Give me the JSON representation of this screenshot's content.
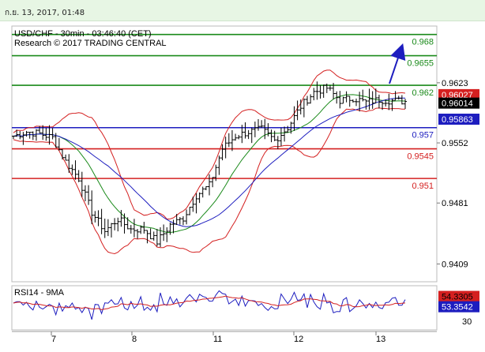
{
  "header": {
    "timestamp": "ก.ย. 13, 2017, 01:48"
  },
  "chart_data": [
    {
      "type": "candlestick",
      "title": "USD/CHF - 30min - 03:46:40 (CET)",
      "subtitle": "Research © 2017 TRADING CENTRAL",
      "ylim": [
        0.9388,
        0.969
      ],
      "y_ticks": [
        "0.9623",
        "0.9552",
        "0.9481",
        "0.9409"
      ],
      "x_ticks": [
        "7",
        "8",
        "11",
        "12",
        "13"
      ],
      "resistance_levels": [
        {
          "label": "0.968",
          "value": 0.968,
          "color": "#1a8a1a"
        },
        {
          "label": "0.9655",
          "value": 0.9655,
          "color": "#1a8a1a"
        },
        {
          "label": "0.962",
          "value": 0.962,
          "color": "#1a8a1a"
        }
      ],
      "pivot": {
        "label": "0.957",
        "value": 0.957,
        "color": "#1d1dbf"
      },
      "support_levels": [
        {
          "label": "0.9545",
          "value": 0.9545,
          "color": "#d42020"
        },
        {
          "label": "0.951",
          "value": 0.951,
          "color": "#d42020"
        }
      ],
      "price_tags": [
        {
          "label": "0.96027",
          "value": 0.9609,
          "color": "#d42020",
          "text_color": "#ffffff"
        },
        {
          "label": "0.96014",
          "value": 0.9599,
          "color": "#000000",
          "text_color": "#ffffff"
        },
        {
          "label": "0.95863",
          "value": 0.958,
          "color": "#1d1dbf",
          "text_color": "#ffffff"
        }
      ],
      "arrow_target": 0.9657,
      "series": [
        {
          "time": [
            0,
            4,
            8,
            12,
            16,
            20,
            24,
            28,
            32,
            36,
            40,
            44,
            48,
            52,
            56,
            60,
            64,
            68,
            72,
            76,
            80,
            84,
            88,
            92,
            96,
            100,
            104,
            108,
            112,
            116,
            120
          ],
          "close": [
            0.956,
            0.9565,
            0.9563,
            0.9558,
            0.953,
            0.951,
            0.947,
            0.9448,
            0.9462,
            0.945,
            0.945,
            0.9435,
            0.9455,
            0.9463,
            0.949,
            0.9502,
            0.9545,
            0.956,
            0.9565,
            0.9568,
            0.9555,
            0.957,
            0.9595,
            0.9612,
            0.9617,
            0.9602,
            0.9605,
            0.96,
            0.9603,
            0.9602,
            0.9601
          ]
        }
      ]
    },
    {
      "type": "line",
      "title": "RSI14 - 9MA",
      "ylim": [
        20,
        70
      ],
      "y_ticks": [
        "30"
      ],
      "price_tags": [
        {
          "label": "54.3305",
          "value": 54.33,
          "color": "#d42020",
          "text_color": "#000000"
        },
        {
          "label": "53.3542",
          "value": 53.35,
          "color": "#1d1dbf",
          "text_color": "#ffffff"
        }
      ]
    }
  ]
}
